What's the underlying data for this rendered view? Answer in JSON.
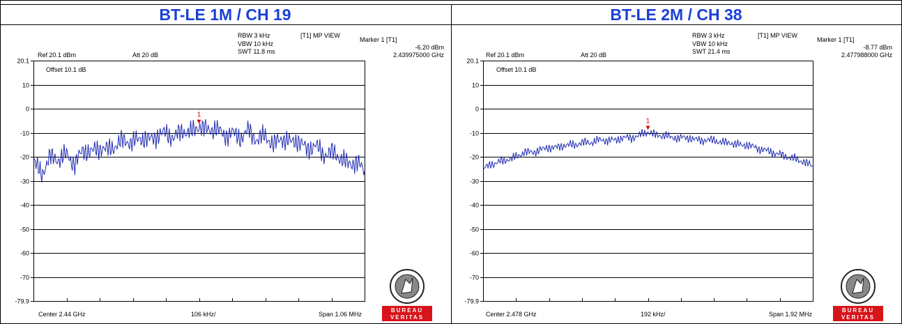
{
  "panels": [
    {
      "header": "BT-LE 1M / CH 19",
      "rbw": "RBW 3 kHz",
      "vbw": "VBW 10 kHz",
      "swt": "SWT 11.8 ms",
      "trace_label": "[T1] MP VIEW",
      "marker_title": "Marker 1 [T1]",
      "marker_level": "-6.20 dBm",
      "marker_freq": "2.439975000 GHz",
      "ref": "Ref 20.1 dBm",
      "att": "Att  20 dB",
      "offset": "Offset 10.1 dB",
      "marker_num": "1",
      "center": "Center 2.44 GHz",
      "per_div": "106 kHz/",
      "span": "Span 1.06 MHz",
      "logo_top": "BUREAU",
      "logo_bottom": "VERITAS"
    },
    {
      "header": "BT-LE 2M / CH 38",
      "rbw": "RBW 3 kHz",
      "vbw": "VBW 10 kHz",
      "swt": "SWT 21.4 ms",
      "trace_label": "[T1] MP VIEW",
      "marker_title": "Marker 1 [T1]",
      "marker_level": "-8.77 dBm",
      "marker_freq": "2.477988000 GHz",
      "ref": "Ref 20.1 dBm",
      "att": "Att  20 dB",
      "offset": "Offset 10.1 dB",
      "marker_num": "1",
      "center": "Center 2.478 GHz",
      "per_div": "192 kHz/",
      "span": "Span 1.92 MHz",
      "logo_top": "BUREAU",
      "logo_bottom": "VERITAS"
    }
  ],
  "colors": {
    "header": "#1a3fd6",
    "trace": "#1f2bb0",
    "marker": "#e00000",
    "logo_red": "#d7141a",
    "grid": "#000000"
  },
  "chart_data": [
    {
      "type": "line",
      "title": "BT-LE 1M / CH 19",
      "xlabel": "",
      "ylabel": "",
      "ylim": [
        -79.9,
        20.1
      ],
      "xlim": [
        0,
        10
      ],
      "y_ticks": [
        "20.1",
        "10",
        "0",
        "-10",
        "-20",
        "-30",
        "-40",
        "-50",
        "-60",
        "-70",
        "-79.9"
      ],
      "y_tick_values": [
        20.1,
        10,
        0,
        -10,
        -20,
        -30,
        -40,
        -50,
        -60,
        -70,
        -79.9
      ],
      "grid": true,
      "marker": {
        "x": 5.0,
        "y": -6.2,
        "label": "1"
      },
      "series": [
        {
          "x": [
            0,
            0.25,
            0.5,
            0.75,
            1,
            1.25,
            1.5,
            1.75,
            2,
            2.25,
            2.5,
            2.75,
            3,
            3.25,
            3.5,
            3.75,
            4,
            4.25,
            4.5,
            4.75,
            5,
            5.25,
            5.5,
            5.75,
            6,
            6.25,
            6.5,
            6.75,
            7,
            7.25,
            7.5,
            7.75,
            8,
            8.25,
            8.5,
            8.75,
            9,
            9.25,
            9.5,
            9.75,
            10
          ],
          "values": [
            -22,
            -27,
            -20,
            -21,
            -19,
            -23,
            -17,
            -18,
            -16,
            -17,
            -15,
            -13,
            -14,
            -12,
            -13,
            -11,
            -10,
            -12,
            -9,
            -10,
            -7,
            -9,
            -8,
            -11,
            -10,
            -12,
            -9,
            -13,
            -11,
            -15,
            -12,
            -14,
            -13,
            -17,
            -15,
            -19,
            -18,
            -20,
            -23,
            -22,
            -26
          ]
        }
      ]
    },
    {
      "type": "line",
      "title": "BT-LE 2M / CH 38",
      "xlabel": "",
      "ylabel": "",
      "ylim": [
        -79.9,
        20.1
      ],
      "xlim": [
        0,
        10
      ],
      "y_ticks": [
        "20.1",
        "10",
        "0",
        "-10",
        "-20",
        "-30",
        "-40",
        "-50",
        "-60",
        "-70",
        "-79.9"
      ],
      "y_tick_values": [
        20.1,
        10,
        0,
        -10,
        -20,
        -30,
        -40,
        -50,
        -60,
        -70,
        -79.9
      ],
      "grid": true,
      "marker": {
        "x": 5.0,
        "y": -8.77,
        "label": "1"
      },
      "series": [
        {
          "x": [
            0,
            0.25,
            0.5,
            0.75,
            1,
            1.25,
            1.5,
            1.75,
            2,
            2.25,
            2.5,
            2.75,
            3,
            3.25,
            3.5,
            3.75,
            4,
            4.25,
            4.5,
            4.75,
            5,
            5.25,
            5.5,
            5.75,
            6,
            6.25,
            6.5,
            6.75,
            7,
            7.25,
            7.5,
            7.75,
            8,
            8.25,
            8.5,
            8.75,
            9,
            9.25,
            9.5,
            9.75,
            10
          ],
          "values": [
            -25,
            -23,
            -22,
            -21,
            -20,
            -18,
            -18,
            -17,
            -16,
            -16,
            -15,
            -15,
            -14,
            -14,
            -13,
            -13,
            -13,
            -12,
            -12,
            -11,
            -9.5,
            -11,
            -11,
            -12,
            -12,
            -12,
            -13,
            -13,
            -13,
            -14,
            -14,
            -15,
            -15,
            -16,
            -17,
            -18,
            -19,
            -20,
            -21,
            -22,
            -24
          ]
        }
      ]
    }
  ]
}
